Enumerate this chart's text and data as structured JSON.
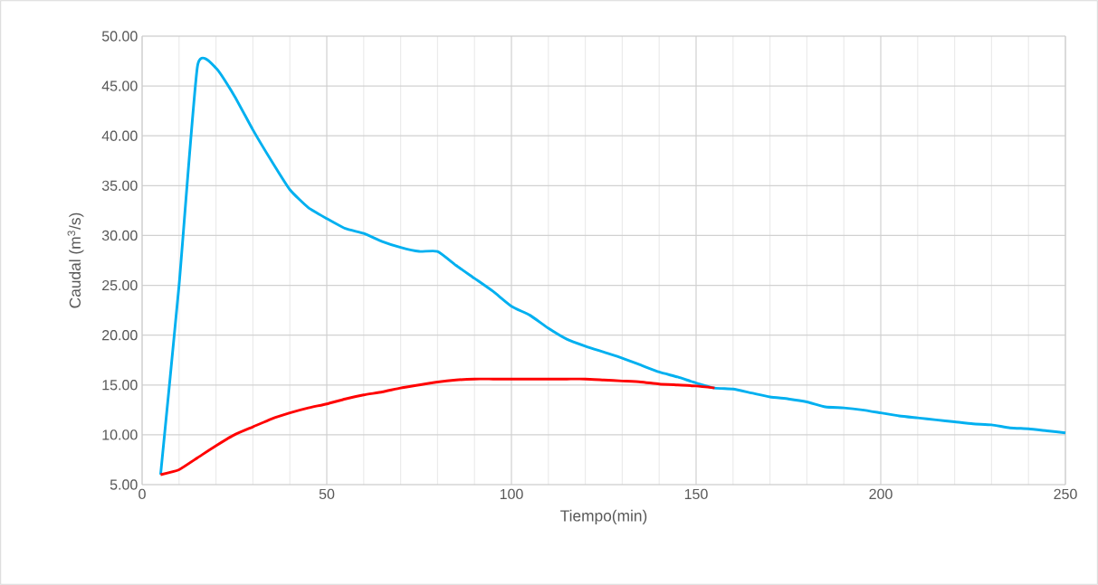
{
  "chart_data": {
    "type": "line",
    "xlabel": "Tiempo(min)",
    "ylabel": "Caudal (m$^{3}$/s)",
    "xlim": [
      0,
      250
    ],
    "xticks": [
      0,
      50,
      100,
      150,
      200,
      250
    ],
    "ylim": [
      5,
      50
    ],
    "yticks": [
      {
        "value": 5,
        "label": "5.00"
      },
      {
        "value": 10,
        "label": "10.00"
      },
      {
        "value": 15,
        "label": "15.00"
      },
      {
        "value": 20,
        "label": "20.00"
      },
      {
        "value": 25,
        "label": "25.00"
      },
      {
        "value": 30,
        "label": "30.00"
      },
      {
        "value": 35,
        "label": "35.00"
      },
      {
        "value": 40,
        "label": "40.00"
      },
      {
        "value": 45,
        "label": "45.00"
      },
      {
        "value": 50,
        "label": "50.00"
      }
    ],
    "grid": true,
    "line_style": "solid",
    "series": [
      {
        "color": "#00b0f0",
        "x": [
          5,
          10,
          15,
          20,
          25,
          30,
          35,
          40,
          45,
          50,
          55,
          60,
          65,
          70,
          75,
          80,
          85,
          90,
          95,
          100,
          105,
          110,
          115,
          120,
          125,
          130,
          135,
          140,
          145,
          150,
          155,
          160,
          165,
          170,
          175,
          180,
          185,
          190,
          195,
          200,
          205,
          210,
          215,
          220,
          225,
          230,
          235,
          240,
          245,
          250
        ],
        "values": [
          6.0,
          25.0,
          47.0,
          46.8,
          44.0,
          40.6,
          37.5,
          34.6,
          32.8,
          31.7,
          30.7,
          30.2,
          29.4,
          28.8,
          28.4,
          28.4,
          27.0,
          25.7,
          24.4,
          22.9,
          22.0,
          20.7,
          19.6,
          18.9,
          18.3,
          17.7,
          17.0,
          16.3,
          15.8,
          15.2,
          14.7,
          14.6,
          14.2,
          13.8,
          13.6,
          13.3,
          12.8,
          12.7,
          12.5,
          12.2,
          11.9,
          11.7,
          11.5,
          11.3,
          11.1,
          11.0,
          10.7,
          10.6,
          10.4,
          10.2
        ]
      },
      {
        "color": "#ff0000",
        "x": [
          5,
          10,
          15,
          20,
          25,
          30,
          35,
          40,
          45,
          50,
          55,
          60,
          65,
          70,
          75,
          80,
          85,
          90,
          95,
          100,
          105,
          110,
          115,
          120,
          125,
          130,
          135,
          140,
          145,
          150,
          155
        ],
        "values": [
          6.0,
          6.5,
          7.7,
          8.9,
          10.0,
          10.8,
          11.6,
          12.2,
          12.7,
          13.1,
          13.6,
          14.0,
          14.3,
          14.7,
          15.0,
          15.3,
          15.5,
          15.6,
          15.6,
          15.6,
          15.6,
          15.6,
          15.6,
          15.6,
          15.5,
          15.4,
          15.3,
          15.1,
          15.0,
          14.9,
          14.7
        ]
      }
    ]
  }
}
